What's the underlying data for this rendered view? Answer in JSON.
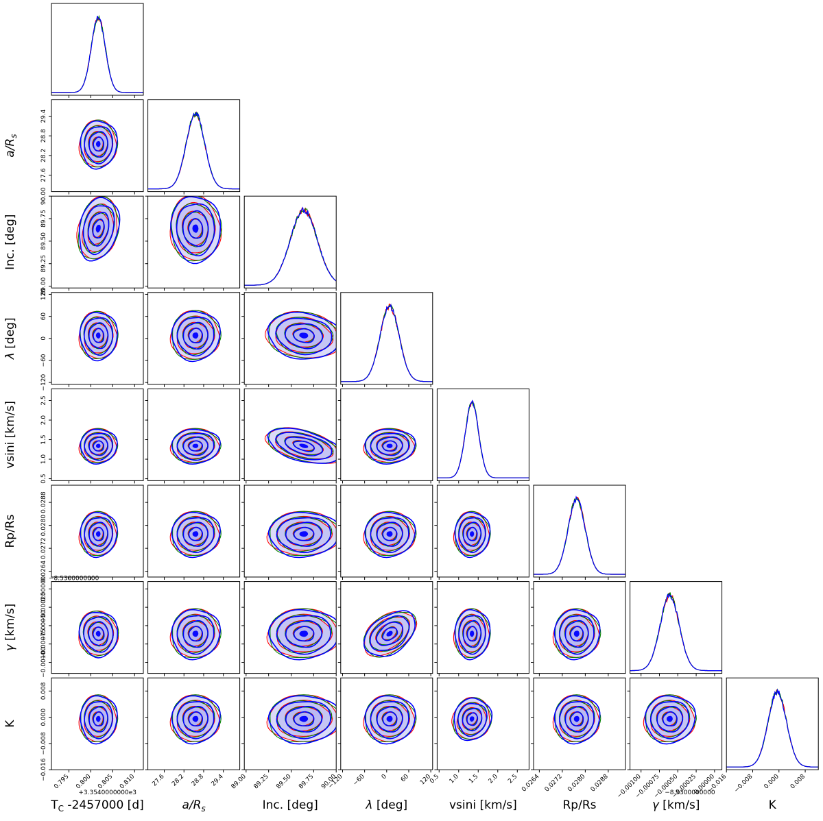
{
  "chart_data": {
    "type": "corner",
    "title": "",
    "grid": false,
    "legend": "none",
    "series": [
      {
        "color": "#ff0000"
      },
      {
        "color": "#008000"
      },
      {
        "color": "#0000ff"
      }
    ],
    "fill_color": "#b0b0f0",
    "core_color": "#0000ff",
    "parameters": [
      {
        "label": "T_C -2457000 [d]",
        "label_main": "T",
        "label_sub": "C",
        "label_rest": " -2457000 [d]",
        "range": [
          0.791,
          0.812
        ],
        "mean": 0.8017,
        "sd": 0.0016,
        "ticks": [
          {
            "v": 0.795,
            "t": "0.795"
          },
          {
            "v": 0.8,
            "t": "0.800"
          },
          {
            "v": 0.805,
            "t": "0.805"
          },
          {
            "v": 0.81,
            "t": "0.810"
          }
        ],
        "offset": "+3.3540000000e3"
      },
      {
        "label": "a/R_s",
        "label_main": "a/R",
        "label_sub": "s",
        "label_rest": "",
        "italic": true,
        "range": [
          27.1,
          29.9
        ],
        "mean": 28.55,
        "sd": 0.28,
        "ticks": [
          {
            "v": 27.6,
            "t": "27.6"
          },
          {
            "v": 28.2,
            "t": "28.2"
          },
          {
            "v": 28.8,
            "t": "28.8"
          },
          {
            "v": 29.4,
            "t": "29.4"
          }
        ]
      },
      {
        "label": "Inc. [deg]",
        "label_main": "Inc. [deg]",
        "range": [
          88.98,
          90.0
        ],
        "mean": 89.64,
        "sd": 0.15,
        "ticks": [
          {
            "v": 89.0,
            "t": "89.00"
          },
          {
            "v": 89.25,
            "t": "89.25"
          },
          {
            "v": 89.5,
            "t": "89.50"
          },
          {
            "v": 89.75,
            "t": "89.75"
          },
          {
            "v": 90.0,
            "t": "90.00"
          }
        ]
      },
      {
        "label": "λ [deg]",
        "label_main": "λ",
        "label_rest": " [deg]",
        "italic_main": true,
        "range": [
          -125,
          125
        ],
        "mean": 8,
        "sd": 26,
        "ticks": [
          {
            "v": -120,
            "t": "−120"
          },
          {
            "v": -60,
            "t": "−60"
          },
          {
            "v": 0,
            "t": "0"
          },
          {
            "v": 60,
            "t": "60"
          },
          {
            "v": 120,
            "t": "120"
          }
        ]
      },
      {
        "label": "vsini [km/s]",
        "label_main": "vsini [km/s]",
        "range": [
          0.45,
          2.8
        ],
        "mean": 1.34,
        "sd": 0.17,
        "ticks": [
          {
            "v": 0.5,
            "t": "0.5"
          },
          {
            "v": 1.0,
            "t": "1.0"
          },
          {
            "v": 1.5,
            "t": "1.5"
          },
          {
            "v": 2.0,
            "t": "2.0"
          },
          {
            "v": 2.5,
            "t": "2.5"
          }
        ]
      },
      {
        "label": "Rp/Rs",
        "label_main": "Rp/Rs",
        "range": [
          0.0262,
          0.0294
        ],
        "mean": 0.0277,
        "sd": 0.0003,
        "ticks": [
          {
            "v": 0.0264,
            "t": "0.0264"
          },
          {
            "v": 0.0272,
            "t": "0.0272"
          },
          {
            "v": 0.028,
            "t": "0.0280"
          },
          {
            "v": 0.0288,
            "t": "0.0288"
          }
        ]
      },
      {
        "label": "γ [km/s]",
        "label_main": "γ",
        "label_rest": " [km/s]",
        "italic_main": true,
        "range": [
          -0.00115,
          0.0001
        ],
        "mean": -0.00061,
        "sd": 0.00013,
        "ticks": [
          {
            "v": -0.001,
            "t": "−0.00100"
          },
          {
            "v": -0.00075,
            "t": "−0.00075"
          },
          {
            "v": -0.0005,
            "t": "−0.00050"
          },
          {
            "v": -0.00025,
            "t": "−0.00025"
          },
          {
            "v": 0.0,
            "t": "0.00000"
          }
        ],
        "offset": "−8.5300000000"
      },
      {
        "label": "K",
        "label_main": "K",
        "range": [
          -0.016,
          0.012
        ],
        "mean": -0.0005,
        "sd": 0.0028,
        "ticks": [
          {
            "v": -0.016,
            "t": "−0.016"
          },
          {
            "v": -0.008,
            "t": "−0.008"
          },
          {
            "v": 0.0,
            "t": "0.000"
          },
          {
            "v": 0.008,
            "t": "0.008"
          }
        ]
      }
    ]
  }
}
